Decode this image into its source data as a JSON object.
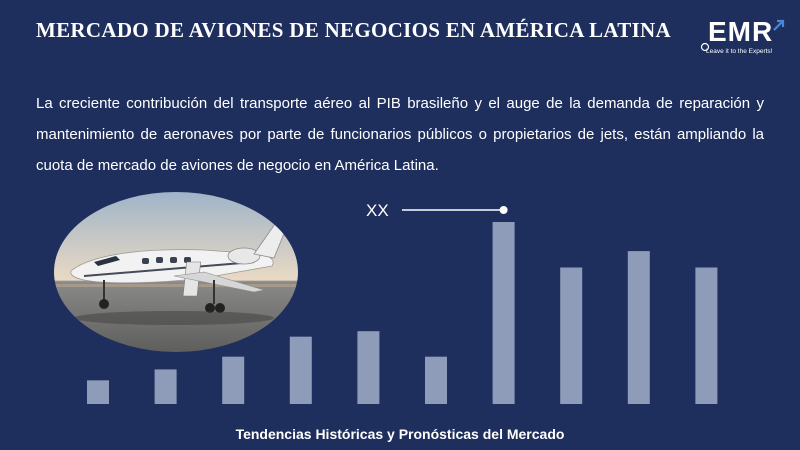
{
  "header": {
    "title": "MERCADO DE AVIONES DE NEGOCIOS EN AMÉRICA LATINA",
    "logo_text": "EMR",
    "logo_tagline": "Leave it to the Experts!"
  },
  "description": "La creciente contribución del transporte aéreo al PIB brasileño y el auge de la demanda de reparación y mantenimiento de aeronaves por parte de funcionarios públicos o propietarios de jets, están ampliando la cuota de mercado de aviones de negocio en América Latina.",
  "image": {
    "subject": "business-jet-photo"
  },
  "footer": {
    "caption": "Tendencias Históricas y Pronósticas del Mercado"
  },
  "colors": {
    "background": "#1e2f5e",
    "bar": "#8e9cba",
    "text": "#ffffff"
  },
  "chart_data": {
    "type": "bar",
    "values": [
      13,
      19,
      26,
      37,
      40,
      26,
      100,
      75,
      84,
      75
    ],
    "annotation": {
      "text": "XX",
      "bar_index": 6
    },
    "ylim": [
      0,
      100
    ],
    "grid": false
  }
}
